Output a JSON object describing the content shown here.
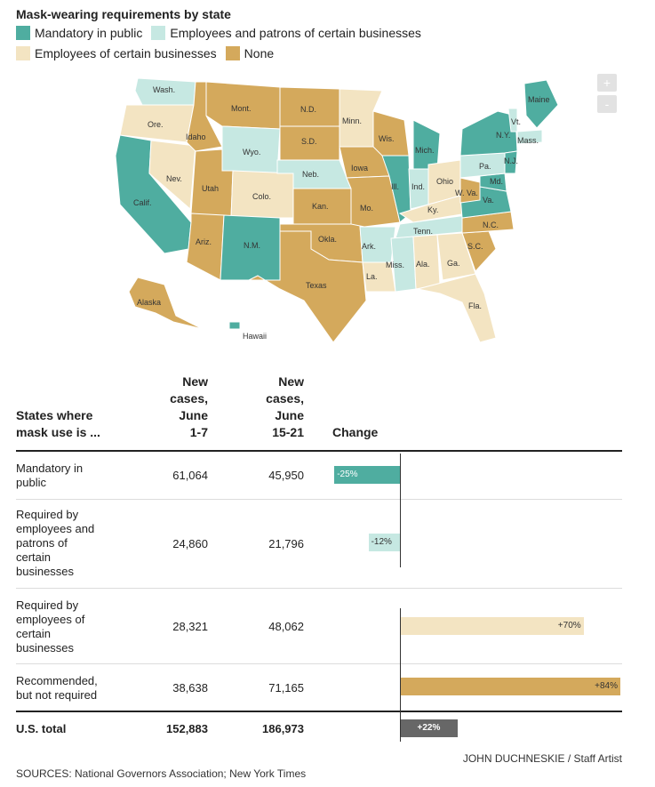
{
  "title": "Mask-wearing requirements by state",
  "legend": [
    {
      "label": "Mandatory in public",
      "color": "#4fada0"
    },
    {
      "label": "Employees and patrons of certain businesses",
      "color": "#c6e8e2"
    },
    {
      "label": "Employees of certain businesses",
      "color": "#f3e4c2"
    },
    {
      "label": "None",
      "color": "#d4a95c"
    }
  ],
  "zoom": {
    "in": "+",
    "out": "-"
  },
  "states": [
    {
      "label": "Wash.",
      "cat": 1
    },
    {
      "label": "Ore.",
      "cat": 2
    },
    {
      "label": "Calif.",
      "cat": 0
    },
    {
      "label": "Nev.",
      "cat": 2
    },
    {
      "label": "Idaho",
      "cat": 3
    },
    {
      "label": "Mont.",
      "cat": 3
    },
    {
      "label": "Wyo.",
      "cat": 1
    },
    {
      "label": "Utah",
      "cat": 3
    },
    {
      "label": "Ariz.",
      "cat": 3
    },
    {
      "label": "Colo.",
      "cat": 2
    },
    {
      "label": "N.M.",
      "cat": 0
    },
    {
      "label": "N.D.",
      "cat": 3
    },
    {
      "label": "S.D.",
      "cat": 3
    },
    {
      "label": "Neb.",
      "cat": 1
    },
    {
      "label": "Kan.",
      "cat": 3
    },
    {
      "label": "Okla.",
      "cat": 3
    },
    {
      "label": "Texas",
      "cat": 3
    },
    {
      "label": "Minn.",
      "cat": 2
    },
    {
      "label": "Iowa",
      "cat": 3
    },
    {
      "label": "Mo.",
      "cat": 3
    },
    {
      "label": "Ark.",
      "cat": 1
    },
    {
      "label": "La.",
      "cat": 2
    },
    {
      "label": "Wis.",
      "cat": 3
    },
    {
      "label": "Ill.",
      "cat": 0
    },
    {
      "label": "Mich.",
      "cat": 0
    },
    {
      "label": "Ind.",
      "cat": 1
    },
    {
      "label": "Ohio",
      "cat": 2
    },
    {
      "label": "Ky.",
      "cat": 2
    },
    {
      "label": "Tenn.",
      "cat": 1
    },
    {
      "label": "Miss.",
      "cat": 1
    },
    {
      "label": "Ala.",
      "cat": 2
    },
    {
      "label": "Ga.",
      "cat": 2
    },
    {
      "label": "Fla.",
      "cat": 2
    },
    {
      "label": "S.C.",
      "cat": 3
    },
    {
      "label": "N.C.",
      "cat": 3
    },
    {
      "label": "Va.",
      "cat": 0
    },
    {
      "label": "W. Va.",
      "cat": 3
    },
    {
      "label": "Md.",
      "cat": 0
    },
    {
      "label": "Pa.",
      "cat": 1
    },
    {
      "label": "N.Y.",
      "cat": 0
    },
    {
      "label": "N.J.",
      "cat": 0
    },
    {
      "label": "Vt.",
      "cat": 1
    },
    {
      "label": "Mass.",
      "cat": 1
    },
    {
      "label": "Maine",
      "cat": 0
    },
    {
      "label": "Alaska",
      "cat": 3
    },
    {
      "label": "Hawaii",
      "cat": 0
    }
  ],
  "table": {
    "headers": {
      "states": [
        "States where",
        "mask use is ..."
      ],
      "col1": [
        "New",
        "cases,",
        "June",
        "1-7"
      ],
      "col2": [
        "New",
        "cases,",
        "June",
        "15-21"
      ],
      "change": "Change"
    },
    "rows": [
      {
        "label": [
          "Mandatory in",
          "public"
        ],
        "june1_7": "61,064",
        "june15_21": "45,950",
        "change_pct": -25,
        "change_label": "-25%",
        "color": "#4fada0",
        "text_color": "#ffffff"
      },
      {
        "label": [
          "Required by",
          "employees and",
          "patrons of",
          "certain",
          "businesses"
        ],
        "june1_7": "24,860",
        "june15_21": "21,796",
        "change_pct": -12,
        "change_label": "-12%",
        "color": "#c6e8e2",
        "text_color": "#333333"
      },
      {
        "label": [
          "Required by",
          "employees of",
          "certain",
          "businesses"
        ],
        "june1_7": "28,321",
        "june15_21": "48,062",
        "change_pct": 70,
        "change_label": "+70%",
        "color": "#f3e4c2",
        "text_color": "#333333"
      },
      {
        "label": [
          "Recommended,",
          "but not required"
        ],
        "june1_7": "38,638",
        "june15_21": "71,165",
        "change_pct": 84,
        "change_label": "+84%",
        "color": "#d4a95c",
        "text_color": "#333333"
      }
    ],
    "total": {
      "label": "U.S. total",
      "june1_7": "152,883",
      "june15_21": "186,973",
      "change_pct": 22,
      "change_label": "+22%",
      "color": "#676767",
      "text_color": "#ffffff"
    }
  },
  "credit": "JOHN DUCHNESKIE / Staff Artist",
  "source": "SOURCES: National Governors Association; New York Times"
}
